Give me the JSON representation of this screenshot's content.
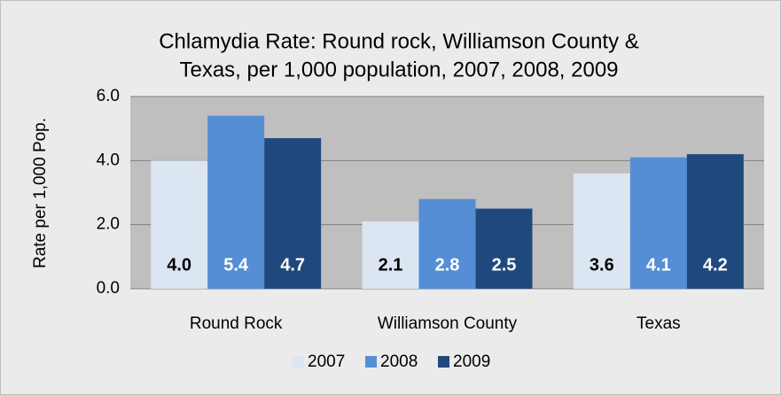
{
  "chart_data": {
    "type": "bar",
    "title": [
      "Chlamydia Rate: Round rock, Williamson County &",
      "Texas, per 1,000 population, 2007, 2008, 2009"
    ],
    "y_label": "Rate per 1,000 Pop.",
    "categories": [
      "Round Rock",
      "Williamson County",
      "Texas"
    ],
    "series": [
      {
        "name": "2007",
        "color": "#dce6f2",
        "values": [
          4.0,
          2.1,
          3.6
        ],
        "value_labels": [
          "4.0",
          "2.1",
          "3.6"
        ]
      },
      {
        "name": "2008",
        "color": "#558ed5",
        "values": [
          5.4,
          2.8,
          4.1
        ],
        "value_labels": [
          "5.4",
          "2.8",
          "4.1"
        ]
      },
      {
        "name": "2009",
        "color": "#1f497d",
        "values": [
          4.7,
          2.5,
          4.2
        ],
        "value_labels": [
          "4.7",
          "2.5",
          "4.2"
        ]
      }
    ],
    "ylim": [
      0,
      6
    ],
    "yticks": [
      {
        "value": 0,
        "label": "0.0"
      },
      {
        "value": 2,
        "label": "2.0"
      },
      {
        "value": 4,
        "label": "4.0"
      },
      {
        "value": 6,
        "label": "6.0"
      }
    ],
    "grid": true,
    "legend": "bottom"
  }
}
